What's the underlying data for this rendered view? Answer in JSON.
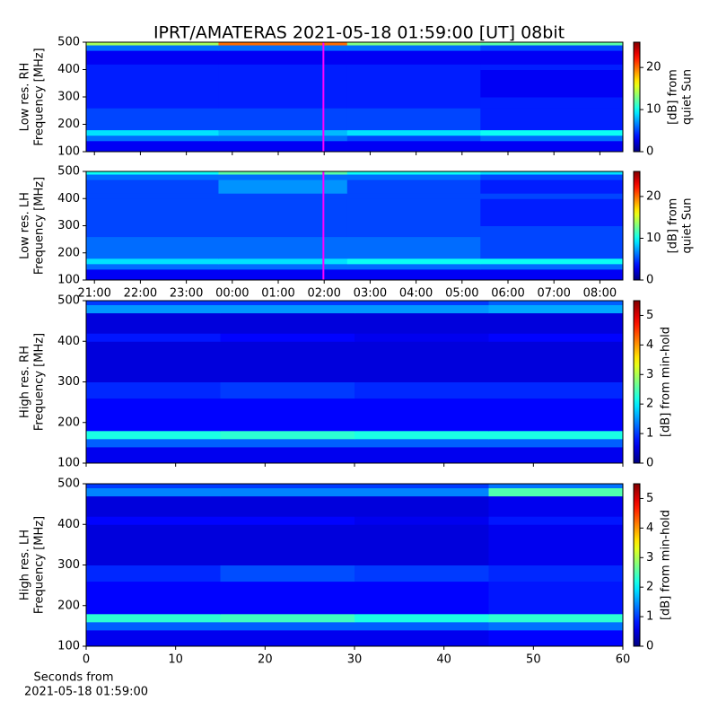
{
  "chart_data": [
    {
      "type": "heatmap",
      "title": "IPRT/AMATERAS 2021-05-18 01:59:00 [UT]   08bit",
      "ylabel": [
        "Low res. RH",
        "Frequency [MHz]"
      ],
      "colorbar_label": [
        "[dB] from",
        "quiet Sun"
      ],
      "xlim": [
        20.82,
        32.5
      ],
      "ylim": [
        100,
        500
      ],
      "yticks": [
        100,
        200,
        300,
        400,
        500
      ],
      "xticks": [
        21,
        22,
        23,
        24,
        25,
        26,
        27,
        28,
        29,
        30,
        31,
        32
      ],
      "show_xticklabels": false,
      "clim": [
        0,
        26
      ],
      "cticks": [
        0,
        10,
        20
      ],
      "x_edges": [
        20.82,
        23.7,
        26.5,
        29.4,
        32.5
      ],
      "y_edges": [
        100,
        140,
        160,
        180,
        260,
        300,
        400,
        420,
        470,
        490,
        500
      ],
      "z": [
        [
          3,
          3,
          3,
          3
        ],
        [
          6,
          6,
          5,
          6
        ],
        [
          9,
          8,
          9,
          10
        ],
        [
          5,
          5,
          5,
          4
        ],
        [
          4,
          4,
          4,
          4
        ],
        [
          4,
          4,
          4,
          3
        ],
        [
          4,
          4,
          4,
          4
        ],
        [
          3,
          3,
          3,
          3
        ],
        [
          6,
          6,
          6,
          5
        ],
        [
          14,
          20,
          13,
          12
        ]
      ],
      "marker": {
        "x": 25.983,
        "color": "#ff00ff"
      }
    },
    {
      "type": "heatmap",
      "ylabel": [
        "Low res. LH",
        "Frequency [MHz]"
      ],
      "colorbar_label": [
        "[dB] from",
        "quiet Sun"
      ],
      "xlim": [
        20.82,
        32.5
      ],
      "ylim": [
        100,
        500
      ],
      "yticks": [
        100,
        200,
        300,
        400,
        500
      ],
      "xticks": [
        {
          "value": 21,
          "label": "21:00"
        },
        {
          "value": 22,
          "label": "22:00"
        },
        {
          "value": 23,
          "label": "23:00"
        },
        {
          "value": 24,
          "label": "00:00"
        },
        {
          "value": 25,
          "label": "01:00"
        },
        {
          "value": 26,
          "label": "02:00"
        },
        {
          "value": 27,
          "label": "03:00"
        },
        {
          "value": 28,
          "label": "04:00"
        },
        {
          "value": 29,
          "label": "05:00"
        },
        {
          "value": 30,
          "label": "06:00"
        },
        {
          "value": 31,
          "label": "07:00"
        },
        {
          "value": 32,
          "label": "08:00"
        }
      ],
      "show_xticklabels": true,
      "clim": [
        0,
        26
      ],
      "cticks": [
        0,
        10,
        20
      ],
      "x_edges": [
        20.82,
        23.7,
        26.5,
        29.4,
        32.5
      ],
      "y_edges": [
        100,
        140,
        160,
        180,
        260,
        300,
        400,
        420,
        470,
        490,
        500
      ],
      "z": [
        [
          3,
          3,
          3,
          3
        ],
        [
          6,
          6,
          6,
          6
        ],
        [
          9,
          9,
          10,
          10
        ],
        [
          6,
          6,
          6,
          5
        ],
        [
          5,
          5,
          5,
          5
        ],
        [
          5,
          5,
          5,
          4
        ],
        [
          5,
          5,
          5,
          5
        ],
        [
          5,
          7,
          5,
          4
        ],
        [
          6,
          6,
          6,
          5
        ],
        [
          10,
          12,
          10,
          9
        ]
      ],
      "marker": {
        "x": 25.983,
        "color": "#ff00ff"
      }
    },
    {
      "type": "heatmap",
      "ylabel": [
        "High res. RH",
        "Frequency [MHz]"
      ],
      "colorbar_label": [
        "[dB] from min-hold"
      ],
      "xlim": [
        0,
        60
      ],
      "ylim": [
        100,
        500
      ],
      "yticks": [
        100,
        200,
        300,
        400,
        500
      ],
      "xticks": [
        0,
        10,
        20,
        30,
        40,
        50,
        60
      ],
      "show_xticklabels": false,
      "clim": [
        0,
        5.5
      ],
      "cticks": [
        0,
        1,
        2,
        3,
        4,
        5
      ],
      "x_edges": [
        0,
        15,
        30,
        45,
        60
      ],
      "y_edges": [
        100,
        140,
        160,
        180,
        260,
        300,
        400,
        420,
        470,
        490,
        500
      ],
      "z": [
        [
          0.6,
          0.6,
          0.6,
          0.6
        ],
        [
          1.2,
          1.2,
          1.2,
          1.2
        ],
        [
          2.2,
          2.3,
          2.2,
          2.2
        ],
        [
          0.7,
          0.7,
          0.7,
          0.7
        ],
        [
          0.9,
          1.0,
          0.9,
          0.9
        ],
        [
          0.5,
          0.5,
          0.5,
          0.5
        ],
        [
          0.8,
          0.7,
          0.6,
          0.7
        ],
        [
          0.5,
          0.5,
          0.5,
          0.5
        ],
        [
          1.5,
          1.5,
          1.5,
          1.6
        ],
        [
          1.0,
          1.0,
          1.0,
          1.2
        ]
      ]
    },
    {
      "type": "heatmap",
      "ylabel": [
        "High res. LH",
        "Frequency [MHz]"
      ],
      "colorbar_label": [
        "[dB] from min-hold"
      ],
      "xlabel": [
        "Seconds from",
        "2021-05-18 01:59:00"
      ],
      "xlim": [
        0,
        60
      ],
      "ylim": [
        100,
        500
      ],
      "yticks": [
        100,
        200,
        300,
        400,
        500
      ],
      "xticks": [
        0,
        10,
        20,
        30,
        40,
        50,
        60
      ],
      "show_xticklabels": true,
      "clim": [
        0,
        5.5
      ],
      "cticks": [
        0,
        1,
        2,
        3,
        4,
        5
      ],
      "x_edges": [
        0,
        15,
        30,
        45,
        60
      ],
      "y_edges": [
        100,
        140,
        160,
        180,
        260,
        300,
        400,
        420,
        470,
        490,
        500
      ],
      "z": [
        [
          0.6,
          0.6,
          0.6,
          0.7
        ],
        [
          1.2,
          1.2,
          1.2,
          1.3
        ],
        [
          2.3,
          2.4,
          2.2,
          2.3
        ],
        [
          0.7,
          0.7,
          0.7,
          0.8
        ],
        [
          0.9,
          1.1,
          1.0,
          0.9
        ],
        [
          0.5,
          0.5,
          0.5,
          0.6
        ],
        [
          0.7,
          0.7,
          0.6,
          0.8
        ],
        [
          0.5,
          0.5,
          0.5,
          0.6
        ],
        [
          1.4,
          1.4,
          1.4,
          2.5
        ],
        [
          1.0,
          1.0,
          1.0,
          1.3
        ]
      ]
    }
  ]
}
